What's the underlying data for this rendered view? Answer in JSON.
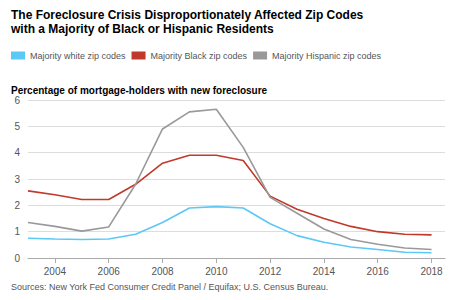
{
  "chart_data": {
    "type": "line",
    "title": "The Foreclosure Crisis Disproportionately Affected Zip Codes",
    "subtitle": "with a Majority of Black or Hispanic Residents",
    "ylabel": "Percentage of mortgage-holders with new foreclosure",
    "source": "Sources: New York Fed Consumer Credit Panel / Equifax; U.S. Census Bureau.",
    "x": [
      2003,
      2004,
      2005,
      2006,
      2007,
      2008,
      2009,
      2010,
      2011,
      2012,
      2013,
      2014,
      2015,
      2016,
      2017,
      2018
    ],
    "series": [
      {
        "name": "Majority white zip codes",
        "color": "#5bc8f5",
        "values": [
          0.75,
          0.72,
          0.7,
          0.72,
          0.9,
          1.35,
          1.9,
          1.95,
          1.9,
          1.3,
          0.85,
          0.6,
          0.42,
          0.32,
          0.22,
          0.2
        ]
      },
      {
        "name": "Majority Black zip codes",
        "color": "#c0392b",
        "values": [
          2.55,
          2.4,
          2.22,
          2.22,
          2.8,
          3.6,
          3.9,
          3.9,
          3.7,
          2.35,
          1.85,
          1.5,
          1.2,
          1.0,
          0.9,
          0.88
        ]
      },
      {
        "name": "Majority Hispanic zip codes",
        "color": "#999999",
        "values": [
          1.35,
          1.2,
          1.02,
          1.18,
          2.8,
          4.9,
          5.55,
          5.65,
          4.2,
          2.3,
          1.7,
          1.1,
          0.7,
          0.52,
          0.38,
          0.32
        ]
      }
    ],
    "xlim": [
      2003,
      2018.5
    ],
    "xticks": [
      2004,
      2006,
      2008,
      2010,
      2012,
      2014,
      2016,
      2018
    ],
    "ylim": [
      0,
      6
    ],
    "yticks": [
      0,
      1,
      2,
      3,
      4,
      5,
      6
    ],
    "grid": true,
    "legend": "top"
  }
}
